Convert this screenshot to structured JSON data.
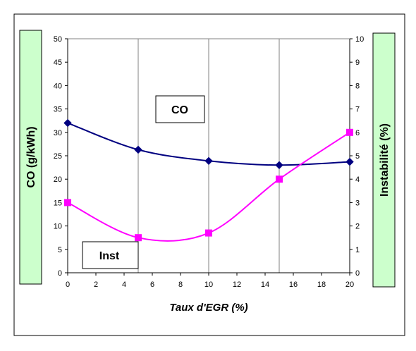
{
  "chart_data": {
    "type": "line",
    "xlabel": "Taux d'EGR (%)",
    "ylabel": "CO (g/kWh)",
    "y2label": "Instabilité (%)",
    "xlim": [
      0,
      20
    ],
    "ylim": [
      0,
      50
    ],
    "y2lim": [
      0,
      10
    ],
    "x_ticks": [
      0,
      2,
      4,
      6,
      8,
      10,
      12,
      14,
      16,
      18,
      20
    ],
    "y_ticks": [
      0,
      5,
      10,
      15,
      20,
      25,
      30,
      35,
      40,
      45,
      50
    ],
    "y2_ticks": [
      0,
      1,
      2,
      3,
      4,
      5,
      6,
      7,
      8,
      9,
      10
    ],
    "grid": true,
    "series": [
      {
        "name": "CO",
        "axis": "left",
        "color": "#000080",
        "marker": "diamond",
        "smooth": true,
        "x": [
          0,
          5,
          10,
          15,
          20
        ],
        "values": [
          32,
          26.3,
          23.9,
          23.0,
          23.7
        ]
      },
      {
        "name": "Inst",
        "axis": "right",
        "color": "#ff00ff",
        "marker": "square",
        "smooth": true,
        "x": [
          0,
          5,
          10,
          15,
          20
        ],
        "values": [
          3.0,
          1.5,
          1.7,
          4.0,
          6.0
        ]
      }
    ],
    "annotations": [
      "CO",
      "Inst"
    ]
  }
}
